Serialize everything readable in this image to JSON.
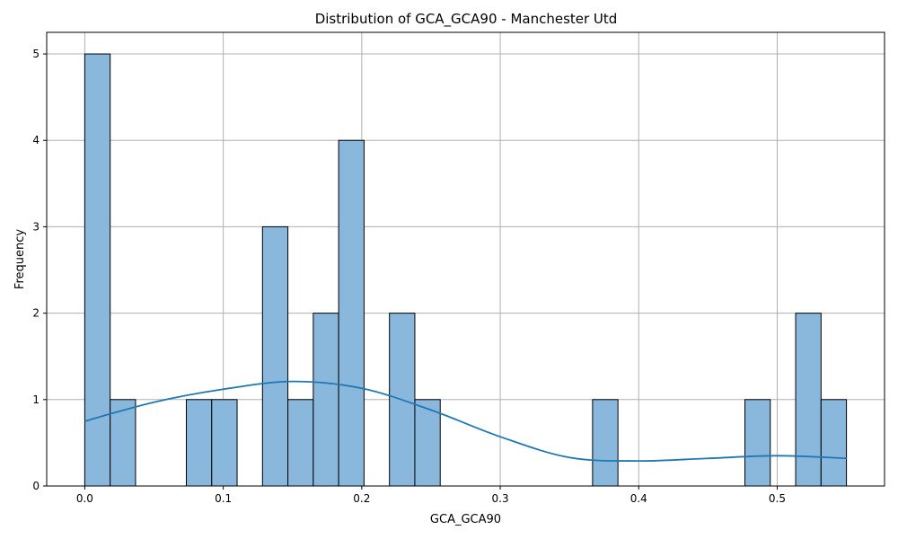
{
  "chart_data": {
    "type": "bar",
    "title": "Distribution of GCA_GCA90 - Manchester Utd",
    "xlabel": "GCA_GCA90",
    "ylabel": "Frequency",
    "xlim": [
      -0.0275,
      0.5775
    ],
    "ylim": [
      0,
      5.25
    ],
    "grid": true,
    "bin_width": 0.01833,
    "bins": [
      {
        "start": 0.0,
        "count": 5
      },
      {
        "start": 0.01833,
        "count": 1
      },
      {
        "start": 0.07333,
        "count": 1
      },
      {
        "start": 0.09167,
        "count": 1
      },
      {
        "start": 0.12833,
        "count": 3
      },
      {
        "start": 0.14667,
        "count": 1
      },
      {
        "start": 0.165,
        "count": 2
      },
      {
        "start": 0.18333,
        "count": 4
      },
      {
        "start": 0.22,
        "count": 2
      },
      {
        "start": 0.23833,
        "count": 1
      },
      {
        "start": 0.36667,
        "count": 1
      },
      {
        "start": 0.47667,
        "count": 1
      },
      {
        "start": 0.51333,
        "count": 2
      },
      {
        "start": 0.53167,
        "count": 1
      }
    ],
    "kde": {
      "x": [
        0.0,
        0.05,
        0.1,
        0.15,
        0.2,
        0.25,
        0.3,
        0.35,
        0.4,
        0.45,
        0.5,
        0.55
      ],
      "y": [
        0.75,
        0.97,
        1.12,
        1.21,
        1.13,
        0.88,
        0.57,
        0.33,
        0.29,
        0.32,
        0.35,
        0.32
      ]
    },
    "x_ticks": [
      {
        "value": 0.0,
        "label": "0.0"
      },
      {
        "value": 0.1,
        "label": "0.1"
      },
      {
        "value": 0.2,
        "label": "0.2"
      },
      {
        "value": 0.3,
        "label": "0.3"
      },
      {
        "value": 0.4,
        "label": "0.4"
      },
      {
        "value": 0.5,
        "label": "0.5"
      }
    ],
    "y_ticks": [
      {
        "value": 0,
        "label": "0"
      },
      {
        "value": 1,
        "label": "1"
      },
      {
        "value": 2,
        "label": "2"
      },
      {
        "value": 3,
        "label": "3"
      },
      {
        "value": 4,
        "label": "4"
      },
      {
        "value": 5,
        "label": "5"
      }
    ],
    "colors": {
      "bar": "#8ab8dc",
      "kde": "#1f77b4"
    }
  }
}
